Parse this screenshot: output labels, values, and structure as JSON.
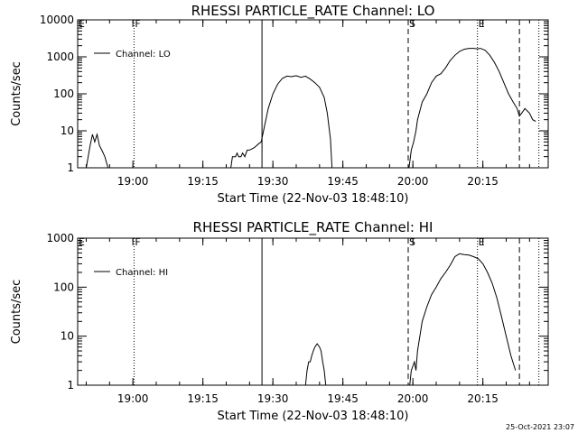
{
  "footer_timestamp": "25-Oct-2021 23:07",
  "chart_data": [
    {
      "type": "line",
      "title": "RHESSI PARTICLE_RATE Channel: LO",
      "xlabel": "Start Time (22-Nov-03 18:48:10)",
      "ylabel": "Counts/sec",
      "y_scale": "log",
      "xlim": [
        "18:48:10",
        "20:29:00"
      ],
      "ylim": [
        1,
        10000
      ],
      "x_ticks": [
        "19:00",
        "19:15",
        "19:30",
        "19:45",
        "20:00",
        "20:15"
      ],
      "y_ticks": [
        "1",
        "10",
        "100",
        "1000",
        "10000"
      ],
      "legend": {
        "placement": "top-left",
        "entries": [
          "Channel: LO"
        ]
      },
      "markers": [
        {
          "time": "18:48:10",
          "label": "E",
          "style": "none"
        },
        {
          "time": "19:00:15",
          "label": "F",
          "style": "dotted"
        },
        {
          "time": "19:27:40",
          "label": "",
          "style": "solid"
        },
        {
          "time": "19:59:00",
          "label": "S",
          "style": "dashed"
        },
        {
          "time": "20:13:50",
          "label": "E",
          "style": "dotted"
        },
        {
          "time": "20:22:50",
          "label": "",
          "style": "dashed"
        },
        {
          "time": "20:27:00",
          "label": "",
          "style": "dotted"
        }
      ],
      "series": [
        {
          "name": "Channel: LO",
          "segments": [
            [
              [
                "18:50:00",
                1
              ],
              [
                "18:50:50",
                4
              ],
              [
                "18:51:20",
                8
              ],
              [
                "18:51:50",
                5
              ],
              [
                "18:52:20",
                8
              ],
              [
                "18:52:50",
                4
              ],
              [
                "18:53:20",
                3
              ],
              [
                "18:54:00",
                2
              ],
              [
                "18:54:40",
                1
              ]
            ],
            [
              [
                "19:21:00",
                1
              ],
              [
                "19:21:20",
                2
              ],
              [
                "19:22:00",
                2
              ],
              [
                "19:22:20",
                2.5
              ],
              [
                "19:22:40",
                2
              ],
              [
                "19:23:10",
                2
              ],
              [
                "19:23:30",
                2.5
              ],
              [
                "19:24:00",
                2
              ],
              [
                "19:24:30",
                3
              ],
              [
                "19:25:00",
                3
              ],
              [
                "19:26:00",
                3.5
              ],
              [
                "19:27:00",
                4.5
              ],
              [
                "19:27:30",
                5
              ],
              [
                "19:28:00",
                10
              ],
              [
                "19:29:00",
                40
              ],
              [
                "19:30:00",
                100
              ],
              [
                "19:31:00",
                180
              ],
              [
                "19:32:00",
                260
              ],
              [
                "19:33:00",
                300
              ],
              [
                "19:34:00",
                290
              ],
              [
                "19:35:00",
                310
              ],
              [
                "19:36:00",
                280
              ],
              [
                "19:37:00",
                300
              ],
              [
                "19:38:00",
                250
              ],
              [
                "19:39:00",
                200
              ],
              [
                "19:40:00",
                150
              ],
              [
                "19:41:00",
                80
              ],
              [
                "19:41:40",
                30
              ],
              [
                "19:42:20",
                6
              ],
              [
                "19:42:40",
                1
              ]
            ],
            [
              [
                "19:59:10",
                1
              ],
              [
                "19:59:40",
                3
              ],
              [
                "20:00:10",
                5
              ],
              [
                "20:00:40",
                10
              ],
              [
                "20:01:00",
                20
              ],
              [
                "20:02:00",
                60
              ],
              [
                "20:03:00",
                100
              ],
              [
                "20:04:00",
                200
              ],
              [
                "20:05:00",
                300
              ],
              [
                "20:06:00",
                350
              ],
              [
                "20:07:00",
                500
              ],
              [
                "20:08:00",
                800
              ],
              [
                "20:09:00",
                1100
              ],
              [
                "20:10:00",
                1400
              ],
              [
                "20:11:00",
                1600
              ],
              [
                "20:12:00",
                1700
              ],
              [
                "20:13:00",
                1700
              ],
              [
                "20:13:50",
                1650
              ],
              [
                "20:14:30",
                1700
              ],
              [
                "20:15:30",
                1500
              ],
              [
                "20:16:30",
                1100
              ],
              [
                "20:17:30",
                700
              ],
              [
                "20:18:30",
                400
              ],
              [
                "20:19:30",
                200
              ],
              [
                "20:20:30",
                100
              ],
              [
                "20:21:30",
                60
              ],
              [
                "20:22:20",
                40
              ],
              [
                "20:22:50",
                25
              ],
              [
                "20:23:20",
                30
              ],
              [
                "20:24:00",
                40
              ],
              [
                "20:25:00",
                30
              ],
              [
                "20:25:40",
                20
              ],
              [
                "20:26:20",
                18
              ]
            ]
          ]
        }
      ]
    },
    {
      "type": "line",
      "title": "RHESSI PARTICLE_RATE Channel: HI",
      "xlabel": "Start Time (22-Nov-03 18:48:10)",
      "ylabel": "Counts/sec",
      "y_scale": "log",
      "xlim": [
        "18:48:10",
        "20:29:00"
      ],
      "ylim": [
        1,
        1000
      ],
      "x_ticks": [
        "19:00",
        "19:15",
        "19:30",
        "19:45",
        "20:00",
        "20:15"
      ],
      "y_ticks": [
        "1",
        "10",
        "100",
        "1000"
      ],
      "legend": {
        "placement": "top-left",
        "entries": [
          "Channel: HI"
        ]
      },
      "markers": [
        {
          "time": "18:48:10",
          "label": "E",
          "style": "none"
        },
        {
          "time": "19:00:15",
          "label": "F",
          "style": "dotted"
        },
        {
          "time": "19:27:40",
          "label": "",
          "style": "solid"
        },
        {
          "time": "19:59:00",
          "label": "S",
          "style": "dashed"
        },
        {
          "time": "20:13:50",
          "label": "E",
          "style": "dotted"
        },
        {
          "time": "20:22:50",
          "label": "",
          "style": "dashed"
        },
        {
          "time": "20:27:00",
          "label": "",
          "style": "dotted"
        }
      ],
      "series": [
        {
          "name": "Channel: HI",
          "segments": [
            [
              [
                "19:37:00",
                1
              ],
              [
                "19:37:20",
                2
              ],
              [
                "19:37:40",
                3
              ],
              [
                "19:38:00",
                3
              ],
              [
                "19:38:20",
                4
              ],
              [
                "19:38:40",
                5
              ],
              [
                "19:39:00",
                6
              ],
              [
                "19:39:30",
                7
              ],
              [
                "19:40:00",
                6
              ],
              [
                "19:40:20",
                5
              ],
              [
                "19:40:40",
                3
              ],
              [
                "19:41:00",
                2
              ],
              [
                "19:41:20",
                1
              ]
            ],
            [
              [
                "19:59:20",
                1
              ],
              [
                "19:59:40",
                2
              ],
              [
                "20:00:20",
                3
              ],
              [
                "20:00:40",
                2
              ],
              [
                "20:01:00",
                5
              ],
              [
                "20:01:30",
                10
              ],
              [
                "20:02:00",
                20
              ],
              [
                "20:03:00",
                40
              ],
              [
                "20:04:00",
                70
              ],
              [
                "20:05:00",
                100
              ],
              [
                "20:06:00",
                150
              ],
              [
                "20:07:00",
                200
              ],
              [
                "20:08:00",
                280
              ],
              [
                "20:09:00",
                420
              ],
              [
                "20:10:00",
                480
              ],
              [
                "20:11:00",
                460
              ],
              [
                "20:12:00",
                450
              ],
              [
                "20:13:00",
                420
              ],
              [
                "20:14:00",
                380
              ],
              [
                "20:15:00",
                300
              ],
              [
                "20:16:00",
                200
              ],
              [
                "20:17:00",
                120
              ],
              [
                "20:18:00",
                60
              ],
              [
                "20:19:00",
                25
              ],
              [
                "20:20:00",
                10
              ],
              [
                "20:21:00",
                4
              ],
              [
                "20:22:00",
                2
              ]
            ]
          ]
        }
      ]
    }
  ]
}
